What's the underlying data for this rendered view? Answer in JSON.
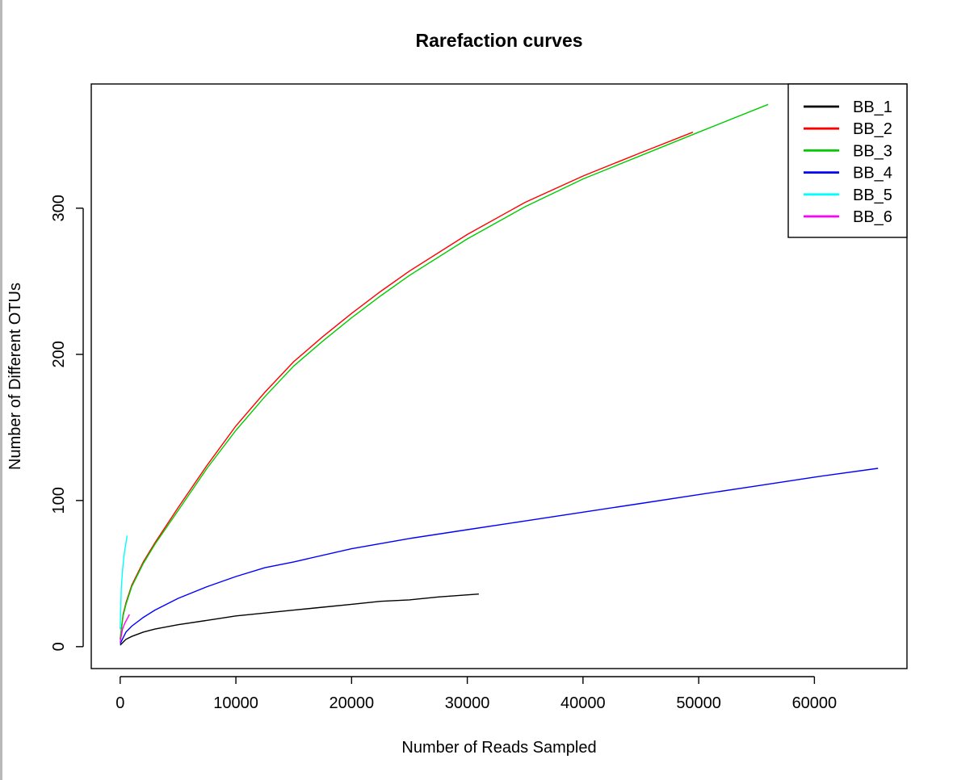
{
  "chart_data": {
    "type": "line",
    "title": "Rarefaction curves",
    "xlabel": "Number of Reads Sampled",
    "ylabel": "Number of Different OTUs",
    "xlim": [
      -2500,
      68000
    ],
    "ylim": [
      -15,
      385
    ],
    "xticks": [
      0,
      10000,
      20000,
      30000,
      40000,
      50000,
      60000
    ],
    "yticks": [
      0,
      100,
      200,
      300
    ],
    "grid": false,
    "legend_position": "top-right",
    "series": [
      {
        "name": "BB_1",
        "color": "#000000",
        "x": [
          0,
          500,
          1000,
          2000,
          3000,
          5000,
          7500,
          10000,
          12500,
          15000,
          17500,
          20000,
          22500,
          25000,
          27500,
          31000
        ],
        "y": [
          1,
          5,
          7,
          10,
          12,
          15,
          18,
          21,
          23,
          25,
          27,
          29,
          31,
          32,
          34,
          36
        ]
      },
      {
        "name": "BB_2",
        "color": "#ff0000",
        "x": [
          0,
          250,
          500,
          1000,
          2000,
          3000,
          5000,
          7500,
          10000,
          12500,
          15000,
          17500,
          20000,
          22500,
          25000,
          30000,
          35000,
          40000,
          45000,
          49500
        ],
        "y": [
          5,
          22,
          30,
          42,
          58,
          71,
          95,
          124,
          151,
          174,
          195,
          212,
          228,
          243,
          257,
          282,
          304,
          322,
          338,
          352
        ]
      },
      {
        "name": "BB_3",
        "color": "#00cd00",
        "x": [
          0,
          250,
          500,
          1000,
          2000,
          3000,
          5000,
          7500,
          10000,
          12500,
          15000,
          17500,
          20000,
          22500,
          25000,
          30000,
          35000,
          40000,
          45000,
          50000,
          56000
        ],
        "y": [
          5,
          21,
          29,
          41,
          57,
          70,
          93,
          122,
          148,
          171,
          192,
          209,
          225,
          240,
          254,
          279,
          301,
          320,
          336,
          352,
          371
        ]
      },
      {
        "name": "BB_4",
        "color": "#0000ff",
        "x": [
          0,
          500,
          1000,
          2000,
          3000,
          5000,
          7500,
          10000,
          12500,
          15000,
          20000,
          25000,
          30000,
          35000,
          40000,
          45000,
          50000,
          55000,
          60000,
          65500
        ],
        "y": [
          2,
          10,
          14,
          20,
          25,
          33,
          41,
          48,
          54,
          58,
          67,
          74,
          80,
          86,
          92,
          98,
          104,
          110,
          116,
          122
        ]
      },
      {
        "name": "BB_5",
        "color": "#00ffff",
        "x": [
          0,
          100,
          200,
          300,
          400,
          500,
          600
        ],
        "y": [
          12,
          40,
          52,
          60,
          66,
          71,
          76
        ]
      },
      {
        "name": "BB_6",
        "color": "#ff00ff",
        "x": [
          0,
          200,
          400,
          600,
          800
        ],
        "y": [
          3,
          12,
          16,
          19,
          22
        ]
      }
    ]
  }
}
